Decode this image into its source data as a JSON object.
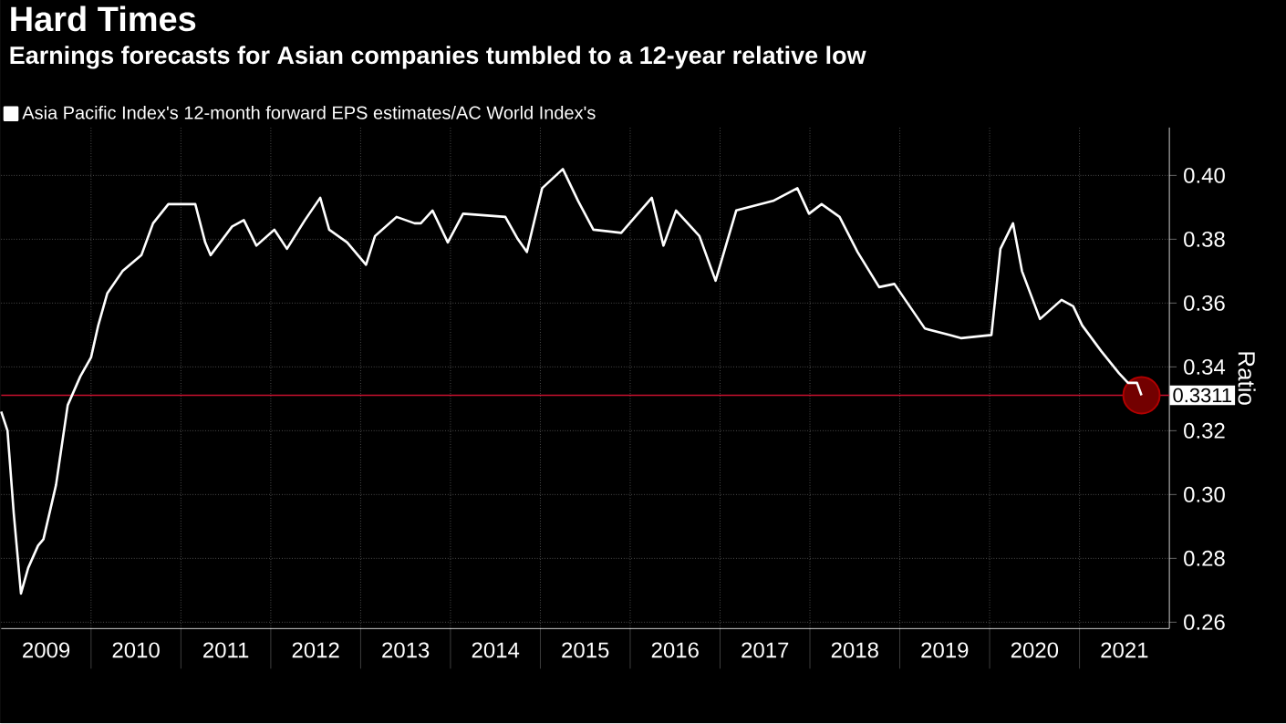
{
  "chart_data": {
    "type": "line",
    "title": "Hard Times",
    "subtitle": "Earnings forecasts for Asian companies tumbled to a 12-year relative low",
    "ylabel": "Ratio",
    "series": [
      {
        "name": "Asia Pacific Index's 12-month forward EPS estimates/AC World Index's",
        "color": "#ffffff",
        "x": [
          2009.0,
          2009.07,
          2009.14,
          2009.22,
          2009.3,
          2009.41,
          2009.47,
          2009.61,
          2009.74,
          2009.88,
          2010.0,
          2010.08,
          2010.18,
          2010.35,
          2010.56,
          2010.69,
          2010.86,
          2011.03,
          2011.16,
          2011.27,
          2011.33,
          2011.57,
          2011.7,
          2011.84,
          2012.04,
          2012.18,
          2012.38,
          2012.55,
          2012.65,
          2012.85,
          2013.06,
          2013.16,
          2013.4,
          2013.6,
          2013.67,
          2013.8,
          2013.97,
          2014.14,
          2014.61,
          2014.75,
          2014.85,
          2015.02,
          2015.25,
          2015.42,
          2015.59,
          2015.9,
          2016.24,
          2016.37,
          2016.51,
          2016.77,
          2016.95,
          2017.18,
          2017.59,
          2017.86,
          2017.99,
          2018.13,
          2018.33,
          2018.53,
          2018.77,
          2018.94,
          2019.28,
          2019.55,
          2019.68,
          2020.02,
          2020.12,
          2020.26,
          2020.36,
          2020.56,
          2020.8,
          2020.93,
          2021.03,
          2021.24,
          2021.44,
          2021.54,
          2021.64,
          2021.69
        ],
        "values": [
          0.326,
          0.32,
          0.294,
          0.269,
          0.277,
          0.284,
          0.286,
          0.303,
          0.328,
          0.337,
          0.343,
          0.353,
          0.363,
          0.37,
          0.375,
          0.385,
          0.391,
          0.391,
          0.391,
          0.379,
          0.375,
          0.384,
          0.386,
          0.378,
          0.383,
          0.377,
          0.386,
          0.393,
          0.383,
          0.379,
          0.372,
          0.381,
          0.387,
          0.385,
          0.385,
          0.389,
          0.379,
          0.388,
          0.387,
          0.38,
          0.376,
          0.396,
          0.402,
          0.392,
          0.383,
          0.382,
          0.393,
          0.378,
          0.389,
          0.381,
          0.367,
          0.389,
          0.392,
          0.396,
          0.388,
          0.391,
          0.387,
          0.376,
          0.365,
          0.366,
          0.352,
          0.35,
          0.349,
          0.35,
          0.377,
          0.385,
          0.37,
          0.355,
          0.361,
          0.359,
          0.353,
          0.345,
          0.338,
          0.335,
          0.335,
          0.3311
        ]
      }
    ],
    "xlim": [
      2009,
      2022
    ],
    "xticks": [
      {
        "value": 2009.5,
        "label": "2009"
      },
      {
        "value": 2010.5,
        "label": "2010"
      },
      {
        "value": 2011.5,
        "label": "2011"
      },
      {
        "value": 2012.5,
        "label": "2012"
      },
      {
        "value": 2013.5,
        "label": "2013"
      },
      {
        "value": 2014.5,
        "label": "2014"
      },
      {
        "value": 2015.5,
        "label": "2015"
      },
      {
        "value": 2016.5,
        "label": "2016"
      },
      {
        "value": 2017.5,
        "label": "2017"
      },
      {
        "value": 2018.5,
        "label": "2018"
      },
      {
        "value": 2019.5,
        "label": "2019"
      },
      {
        "value": 2020.5,
        "label": "2020"
      },
      {
        "value": 2021.5,
        "label": "2021"
      },
      {
        "value": 2010,
        "label": null
      },
      {
        "value": 2011,
        "label": null
      },
      {
        "value": 2012,
        "label": null
      },
      {
        "value": 2013,
        "label": null
      },
      {
        "value": 2014,
        "label": null
      },
      {
        "value": 2015,
        "label": null
      },
      {
        "value": 2016,
        "label": null
      },
      {
        "value": 2017,
        "label": null
      },
      {
        "value": 2018,
        "label": null
      },
      {
        "value": 2019,
        "label": null
      },
      {
        "value": 2020,
        "label": null
      },
      {
        "value": 2021,
        "label": null
      }
    ],
    "ylim": [
      0.258,
      0.415
    ],
    "yticks": [
      {
        "value": 0.26,
        "label": "0.26"
      },
      {
        "value": 0.28,
        "label": "0.28"
      },
      {
        "value": 0.3,
        "label": "0.30"
      },
      {
        "value": 0.32,
        "label": "0.32"
      },
      {
        "value": 0.34,
        "label": "0.34"
      },
      {
        "value": 0.36,
        "label": "0.36"
      },
      {
        "value": 0.38,
        "label": "0.38"
      },
      {
        "value": 0.4,
        "label": "0.40"
      }
    ],
    "grid": true,
    "legend": "top left",
    "ref_lines": [
      {
        "axis": "y",
        "value": 0.3311,
        "color": "#c8102e",
        "line_style": "solid"
      }
    ],
    "annotations": [
      {
        "text": "0.3311",
        "x": 2021.69,
        "y": 0.3311
      }
    ]
  }
}
